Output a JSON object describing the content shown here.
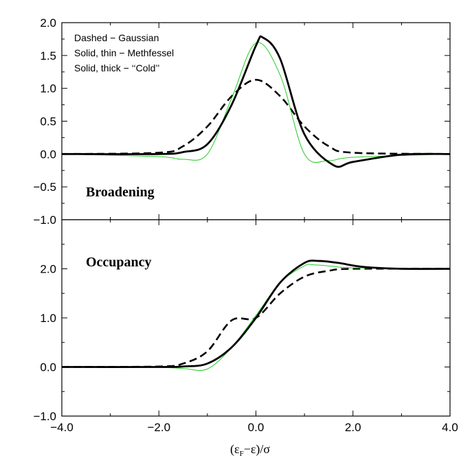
{
  "chart_data": [
    {
      "type": "line",
      "panel": "top",
      "annotation": "Broadening",
      "legend": [
        "Dashed − Gaussian",
        "Solid, thin − Methfessel",
        "Solid, thick − ‘‘Cold’’"
      ],
      "xlim": [
        -4.0,
        4.0
      ],
      "ylim": [
        -1.0,
        2.0
      ],
      "yticks": [
        "−1.0",
        "−0.5",
        "0.0",
        "0.5",
        "1.0",
        "1.5",
        "2.0"
      ],
      "grid": false,
      "series": [
        {
          "style": "dashed",
          "color": "#000000",
          "x": [
            -4.0,
            -2.0,
            -1.5,
            -1.0,
            -0.5,
            0.0,
            0.5,
            1.0,
            1.5,
            2.0,
            4.0
          ],
          "y": [
            0.0,
            0.02,
            0.12,
            0.42,
            0.88,
            1.13,
            0.88,
            0.42,
            0.12,
            0.02,
            0.0
          ]
        },
        {
          "style": "thin",
          "color": "#22cc22",
          "x": [
            -4.0,
            -2.0,
            -1.5,
            -1.0,
            -0.5,
            0.0,
            0.5,
            1.0,
            1.5,
            2.0,
            4.0
          ],
          "y": [
            0.0,
            -0.04,
            -0.08,
            0.0,
            0.85,
            1.69,
            1.2,
            0.0,
            -0.1,
            -0.05,
            0.0
          ]
        },
        {
          "style": "thick",
          "color": "#000000",
          "x": [
            -4.0,
            -2.0,
            -1.5,
            -1.0,
            -0.5,
            0.0,
            0.15,
            0.5,
            1.0,
            1.6,
            2.0,
            3.0,
            4.0
          ],
          "y": [
            0.0,
            0.0,
            0.03,
            0.15,
            0.75,
            1.65,
            1.77,
            1.45,
            0.3,
            -0.17,
            -0.12,
            -0.01,
            0.0
          ]
        }
      ]
    },
    {
      "type": "line",
      "panel": "bottom",
      "annotation": "Occupancy",
      "xlim": [
        -4.0,
        4.0
      ],
      "ylim": [
        -1.0,
        3.0
      ],
      "xticks": [
        "−4.0",
        "−2.0",
        "0.0",
        "2.0",
        "4.0"
      ],
      "yticks": [
        "−1.0",
        "0.0",
        "1.0",
        "2.0"
      ],
      "xlabel": {
        "open": "(ε",
        "sub": "F",
        "close": "−ε)/σ"
      },
      "grid": false,
      "series": [
        {
          "style": "dashed",
          "color": "#000000",
          "x": [
            -4.0,
            -2.0,
            -1.5,
            -1.0,
            -0.5,
            0.0,
            0.5,
            1.0,
            1.5,
            2.0,
            4.0
          ],
          "y": [
            0.0,
            0.01,
            0.07,
            0.32,
            0.95,
            1.0,
            1.5,
            1.84,
            1.96,
            2.0,
            2.0
          ]
        },
        {
          "style": "thin",
          "color": "#22cc22",
          "x": [
            -4.0,
            -2.0,
            -1.5,
            -1.0,
            -0.5,
            0.0,
            0.5,
            1.0,
            1.2,
            1.6,
            2.0,
            4.0
          ],
          "y": [
            0.0,
            -0.01,
            -0.03,
            -0.04,
            0.4,
            1.05,
            1.72,
            2.06,
            2.08,
            2.05,
            2.02,
            2.0
          ]
        },
        {
          "style": "thick",
          "color": "#000000",
          "x": [
            -4.0,
            -2.0,
            -1.5,
            -1.0,
            -0.5,
            0.0,
            0.5,
            1.0,
            1.3,
            1.7,
            2.2,
            3.0,
            4.0
          ],
          "y": [
            0.0,
            0.0,
            0.01,
            0.07,
            0.4,
            1.0,
            1.72,
            2.12,
            2.16,
            2.12,
            2.04,
            2.0,
            2.0
          ]
        }
      ]
    }
  ]
}
